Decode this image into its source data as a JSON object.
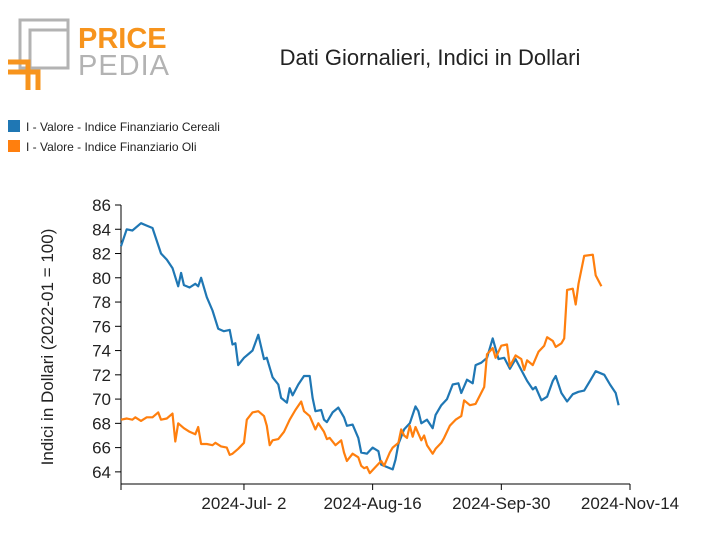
{
  "logo": {
    "word1": "PRICE",
    "word2": "PEDIA",
    "colors": {
      "orange": "#f7941d",
      "gray": "#b3b3b3"
    }
  },
  "chart_data": {
    "type": "line",
    "title": "Dati Giornalieri, Indici in Dollari",
    "ylabel": "Indici in Dollari (2022-01 = 100)",
    "xlabel": "",
    "ylim": [
      63,
      86
    ],
    "yticks": [
      64,
      66,
      68,
      70,
      72,
      74,
      76,
      78,
      80,
      82,
      84,
      86
    ],
    "xlim": [
      "2024-05-20",
      "2024-11-14"
    ],
    "xticks": [
      {
        "date": "2024-07-02",
        "label": "2024-Jul- 2"
      },
      {
        "date": "2024-08-16",
        "label": "2024-Aug-16"
      },
      {
        "date": "2024-09-30",
        "label": "2024-Sep-30"
      },
      {
        "date": "2024-11-14",
        "label": "2024-Nov-14"
      }
    ],
    "legend_position": "top-left",
    "grid": false,
    "series": [
      {
        "name": "I - Valore - Indice Finanziario Cereali",
        "color": "#1f77b4",
        "points": [
          [
            "2024-05-20",
            82.6
          ],
          [
            "2024-05-22",
            84.0
          ],
          [
            "2024-05-24",
            83.9
          ],
          [
            "2024-05-27",
            84.5
          ],
          [
            "2024-05-29",
            84.3
          ],
          [
            "2024-05-31",
            84.1
          ],
          [
            "2024-06-03",
            82.0
          ],
          [
            "2024-06-05",
            81.5
          ],
          [
            "2024-06-07",
            80.8
          ],
          [
            "2024-06-09",
            79.3
          ],
          [
            "2024-06-10",
            80.4
          ],
          [
            "2024-06-11",
            79.4
          ],
          [
            "2024-06-13",
            79.2
          ],
          [
            "2024-06-15",
            79.5
          ],
          [
            "2024-06-16",
            79.3
          ],
          [
            "2024-06-17",
            80.0
          ],
          [
            "2024-06-19",
            78.4
          ],
          [
            "2024-06-21",
            77.3
          ],
          [
            "2024-06-23",
            75.8
          ],
          [
            "2024-06-25",
            75.6
          ],
          [
            "2024-06-27",
            75.7
          ],
          [
            "2024-06-28",
            74.5
          ],
          [
            "2024-06-29",
            74.6
          ],
          [
            "2024-06-30",
            72.8
          ],
          [
            "2024-07-02",
            73.4
          ],
          [
            "2024-07-04",
            73.8
          ],
          [
            "2024-07-05",
            74.0
          ],
          [
            "2024-07-07",
            75.3
          ],
          [
            "2024-07-09",
            73.3
          ],
          [
            "2024-07-10",
            73.4
          ],
          [
            "2024-07-12",
            71.8
          ],
          [
            "2024-07-14",
            71.2
          ],
          [
            "2024-07-15",
            70.1
          ],
          [
            "2024-07-17",
            69.7
          ],
          [
            "2024-07-18",
            70.9
          ],
          [
            "2024-07-19",
            70.3
          ],
          [
            "2024-07-21",
            71.2
          ],
          [
            "2024-07-23",
            71.9
          ],
          [
            "2024-07-25",
            71.9
          ],
          [
            "2024-07-26",
            70.1
          ],
          [
            "2024-07-27",
            69.0
          ],
          [
            "2024-07-29",
            69.1
          ],
          [
            "2024-07-30",
            68.3
          ],
          [
            "2024-07-31",
            68.1
          ],
          [
            "2024-08-02",
            68.9
          ],
          [
            "2024-08-04",
            69.3
          ],
          [
            "2024-08-06",
            68.5
          ],
          [
            "2024-08-07",
            67.8
          ],
          [
            "2024-08-09",
            67.9
          ],
          [
            "2024-08-11",
            66.8
          ],
          [
            "2024-08-12",
            65.6
          ],
          [
            "2024-08-14",
            65.5
          ],
          [
            "2024-08-16",
            66.0
          ],
          [
            "2024-08-18",
            65.7
          ],
          [
            "2024-08-19",
            64.6
          ],
          [
            "2024-08-21",
            64.4
          ],
          [
            "2024-08-23",
            64.2
          ],
          [
            "2024-08-24",
            65.0
          ],
          [
            "2024-08-25",
            66.3
          ],
          [
            "2024-08-27",
            67.5
          ],
          [
            "2024-08-29",
            68.0
          ],
          [
            "2024-08-31",
            69.4
          ],
          [
            "2024-09-01",
            69.0
          ],
          [
            "2024-09-02",
            68.0
          ],
          [
            "2024-09-04",
            68.3
          ],
          [
            "2024-09-06",
            67.6
          ],
          [
            "2024-09-07",
            68.7
          ],
          [
            "2024-09-09",
            69.5
          ],
          [
            "2024-09-11",
            70.0
          ],
          [
            "2024-09-13",
            71.2
          ],
          [
            "2024-09-15",
            71.3
          ],
          [
            "2024-09-16",
            70.5
          ],
          [
            "2024-09-18",
            71.6
          ],
          [
            "2024-09-20",
            71.3
          ],
          [
            "2024-09-21",
            72.8
          ],
          [
            "2024-09-23",
            73.0
          ],
          [
            "2024-09-25",
            73.4
          ],
          [
            "2024-09-27",
            75.0
          ],
          [
            "2024-09-29",
            73.3
          ],
          [
            "2024-10-01",
            73.4
          ],
          [
            "2024-10-03",
            72.5
          ],
          [
            "2024-10-05",
            73.3
          ],
          [
            "2024-10-07",
            72.4
          ],
          [
            "2024-10-09",
            71.5
          ],
          [
            "2024-10-11",
            70.8
          ],
          [
            "2024-10-12",
            71.0
          ],
          [
            "2024-10-14",
            69.9
          ],
          [
            "2024-10-16",
            70.2
          ],
          [
            "2024-10-18",
            71.5
          ],
          [
            "2024-10-19",
            71.9
          ],
          [
            "2024-10-21",
            70.5
          ],
          [
            "2024-10-23",
            69.8
          ],
          [
            "2024-10-25",
            70.4
          ],
          [
            "2024-10-27",
            70.6
          ],
          [
            "2024-10-29",
            70.7
          ],
          [
            "2024-10-31",
            71.5
          ],
          [
            "2024-11-02",
            72.3
          ],
          [
            "2024-11-05",
            72.0
          ],
          [
            "2024-11-07",
            71.2
          ],
          [
            "2024-11-09",
            70.5
          ],
          [
            "2024-11-10",
            69.5
          ]
        ]
      },
      {
        "name": "I - Valore - Indice Finanziario Oli",
        "color": "#ff7f0e",
        "points": [
          [
            "2024-05-20",
            68.3
          ],
          [
            "2024-05-22",
            68.4
          ],
          [
            "2024-05-24",
            68.3
          ],
          [
            "2024-05-25",
            68.5
          ],
          [
            "2024-05-27",
            68.2
          ],
          [
            "2024-05-29",
            68.5
          ],
          [
            "2024-05-31",
            68.5
          ],
          [
            "2024-06-02",
            68.9
          ],
          [
            "2024-06-03",
            68.3
          ],
          [
            "2024-06-05",
            68.4
          ],
          [
            "2024-06-07",
            68.8
          ],
          [
            "2024-06-08",
            66.5
          ],
          [
            "2024-06-09",
            68.0
          ],
          [
            "2024-06-11",
            67.6
          ],
          [
            "2024-06-13",
            67.3
          ],
          [
            "2024-06-15",
            67.1
          ],
          [
            "2024-06-16",
            67.7
          ],
          [
            "2024-06-17",
            66.3
          ],
          [
            "2024-06-19",
            66.3
          ],
          [
            "2024-06-21",
            66.2
          ],
          [
            "2024-06-22",
            66.4
          ],
          [
            "2024-06-24",
            66.1
          ],
          [
            "2024-06-26",
            66.0
          ],
          [
            "2024-06-27",
            65.4
          ],
          [
            "2024-06-28",
            65.5
          ],
          [
            "2024-06-30",
            65.9
          ],
          [
            "2024-07-02",
            66.4
          ],
          [
            "2024-07-03",
            68.3
          ],
          [
            "2024-07-05",
            68.9
          ],
          [
            "2024-07-07",
            69.0
          ],
          [
            "2024-07-09",
            68.6
          ],
          [
            "2024-07-10",
            67.8
          ],
          [
            "2024-07-11",
            66.2
          ],
          [
            "2024-07-12",
            66.6
          ],
          [
            "2024-07-14",
            66.7
          ],
          [
            "2024-07-16",
            67.3
          ],
          [
            "2024-07-18",
            68.3
          ],
          [
            "2024-07-20",
            69.1
          ],
          [
            "2024-07-22",
            69.8
          ],
          [
            "2024-07-23",
            69.0
          ],
          [
            "2024-07-25",
            68.6
          ],
          [
            "2024-07-27",
            67.5
          ],
          [
            "2024-07-28",
            68.0
          ],
          [
            "2024-07-30",
            67.3
          ],
          [
            "2024-07-31",
            66.7
          ],
          [
            "2024-08-01",
            66.8
          ],
          [
            "2024-08-03",
            66.2
          ],
          [
            "2024-08-05",
            66.6
          ],
          [
            "2024-08-06",
            65.6
          ],
          [
            "2024-08-07",
            64.9
          ],
          [
            "2024-08-09",
            65.5
          ],
          [
            "2024-08-11",
            65.2
          ],
          [
            "2024-08-12",
            64.5
          ],
          [
            "2024-08-13",
            64.3
          ],
          [
            "2024-08-14",
            64.4
          ],
          [
            "2024-08-15",
            63.9
          ],
          [
            "2024-08-17",
            64.4
          ],
          [
            "2024-08-19",
            64.9
          ],
          [
            "2024-08-20",
            64.5
          ],
          [
            "2024-08-22",
            65.6
          ],
          [
            "2024-08-23",
            66.0
          ],
          [
            "2024-08-25",
            66.4
          ],
          [
            "2024-08-26",
            67.5
          ],
          [
            "2024-08-27",
            67.0
          ],
          [
            "2024-08-28",
            66.8
          ],
          [
            "2024-08-29",
            67.8
          ],
          [
            "2024-08-30",
            66.9
          ],
          [
            "2024-08-31",
            67.7
          ],
          [
            "2024-09-02",
            66.6
          ],
          [
            "2024-09-03",
            67.0
          ],
          [
            "2024-09-04",
            66.2
          ],
          [
            "2024-09-06",
            65.5
          ],
          [
            "2024-09-07",
            65.9
          ],
          [
            "2024-09-09",
            66.4
          ],
          [
            "2024-09-10",
            66.8
          ],
          [
            "2024-09-12",
            67.8
          ],
          [
            "2024-09-14",
            68.3
          ],
          [
            "2024-09-16",
            68.6
          ],
          [
            "2024-09-17",
            69.9
          ],
          [
            "2024-09-19",
            69.5
          ],
          [
            "2024-09-21",
            69.6
          ],
          [
            "2024-09-24",
            71.0
          ],
          [
            "2024-09-25",
            73.7
          ],
          [
            "2024-09-27",
            74.2
          ],
          [
            "2024-09-28",
            73.4
          ],
          [
            "2024-09-30",
            74.4
          ],
          [
            "2024-10-02",
            74.5
          ],
          [
            "2024-10-03",
            72.7
          ],
          [
            "2024-10-05",
            73.6
          ],
          [
            "2024-10-07",
            73.3
          ],
          [
            "2024-10-08",
            72.4
          ],
          [
            "2024-10-09",
            73.2
          ],
          [
            "2024-10-11",
            72.8
          ],
          [
            "2024-10-13",
            73.9
          ],
          [
            "2024-10-15",
            74.4
          ],
          [
            "2024-10-16",
            75.1
          ],
          [
            "2024-10-18",
            74.8
          ],
          [
            "2024-10-19",
            74.3
          ],
          [
            "2024-10-21",
            74.6
          ],
          [
            "2024-10-22",
            75.0
          ],
          [
            "2024-10-23",
            79.0
          ],
          [
            "2024-10-25",
            79.1
          ],
          [
            "2024-10-26",
            77.8
          ],
          [
            "2024-10-27",
            79.5
          ],
          [
            "2024-10-29",
            81.8
          ],
          [
            "2024-11-01",
            81.9
          ],
          [
            "2024-11-02",
            80.2
          ],
          [
            "2024-11-04",
            79.3
          ]
        ]
      }
    ]
  }
}
